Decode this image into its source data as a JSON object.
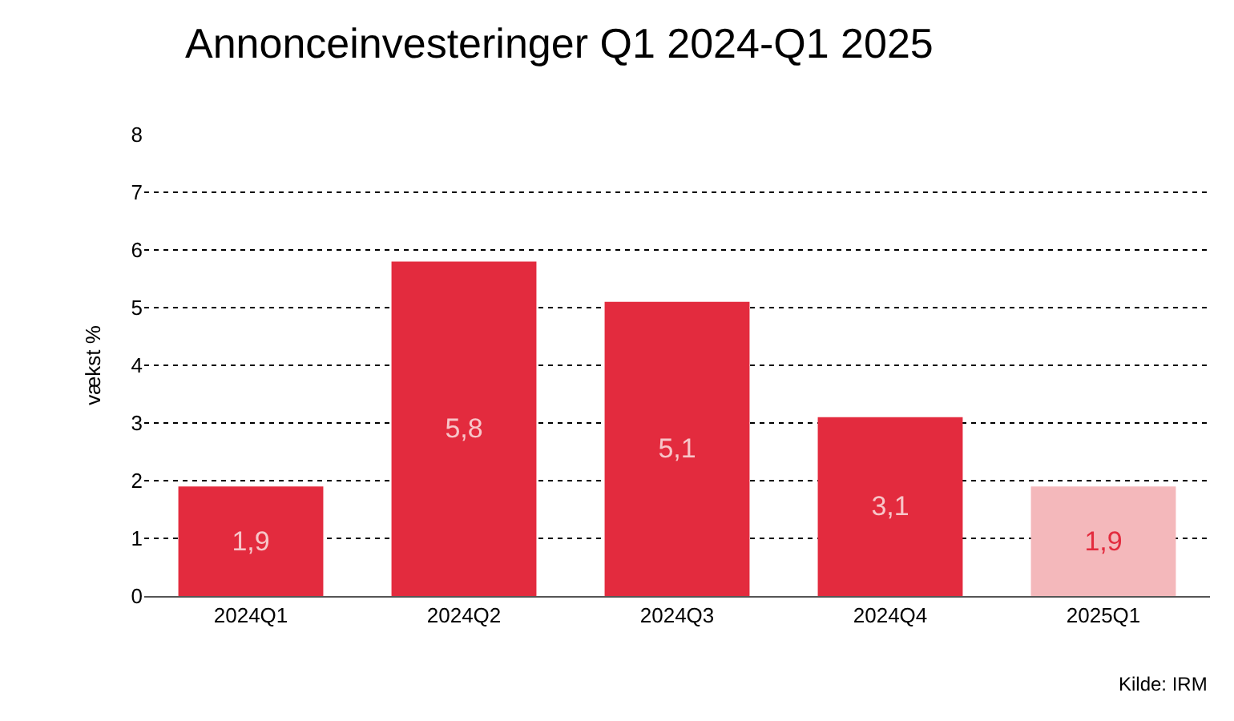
{
  "chart_data": {
    "type": "bar",
    "title": "Annonceinvesteringer Q1 2024-Q1 2025",
    "ylabel": "vækst %",
    "categories": [
      "2024Q1",
      "2024Q2",
      "2024Q3",
      "2024Q4",
      "2025Q1"
    ],
    "values": [
      1.9,
      5.8,
      5.1,
      3.1,
      1.9
    ],
    "value_labels": [
      "1,9",
      "5,8",
      "5,1",
      "3,1",
      "1,9"
    ],
    "colors": [
      "#e32b3e",
      "#e32b3e",
      "#e32b3e",
      "#e32b3e",
      "#f4b8bb"
    ],
    "ylim": [
      0,
      8
    ],
    "yticks": [
      0,
      1,
      2,
      3,
      4,
      5,
      6,
      7,
      8
    ],
    "grid": "y",
    "annotations": [
      "Kilde: IRM"
    ]
  }
}
